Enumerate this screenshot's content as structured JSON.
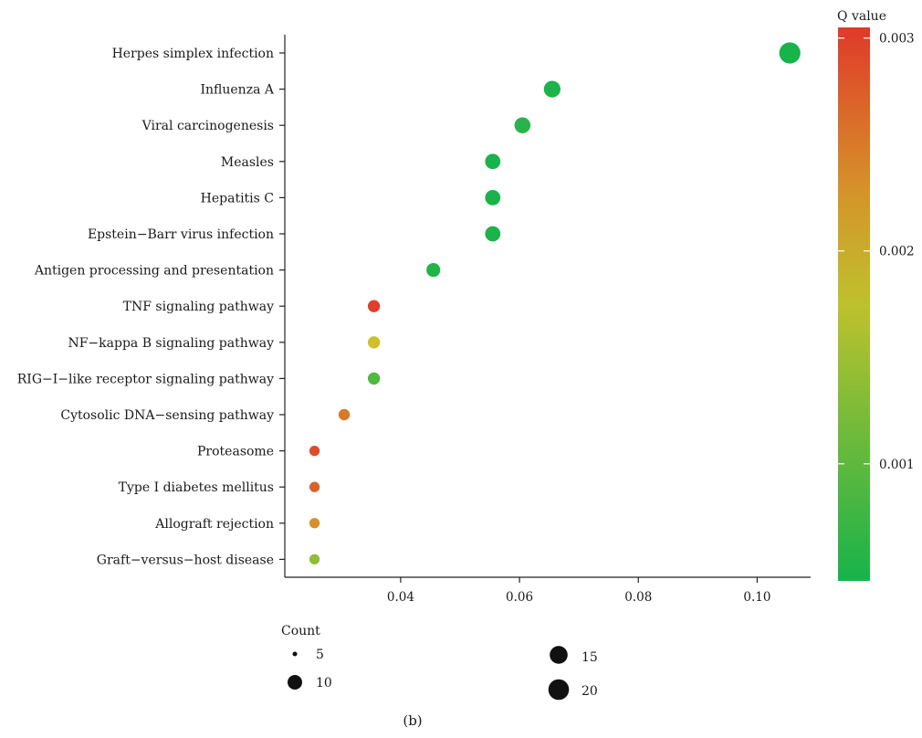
{
  "caption": "(b)",
  "chart_data": {
    "type": "scatter",
    "title": "",
    "xlabel": "",
    "ylabel": "",
    "xlim": [
      0.0205,
      0.109
    ],
    "x_ticks": [
      "0.04",
      "0.06",
      "0.08",
      "0.10"
    ],
    "x_tick_values": [
      0.04,
      0.06,
      0.08,
      0.1
    ],
    "grid": false,
    "categories": [
      "Herpes simplex infection",
      "Influenza A",
      "Viral carcinogenesis",
      "Measles",
      "Hepatitis C",
      "Epstein−Barr virus infection",
      "Antigen processing and presentation",
      "TNF signaling pathway",
      "NF−kappa B signaling pathway",
      "RIG−I−like receptor signaling pathway",
      "Cytosolic DNA−sensing pathway",
      "Proteasome",
      "Type I diabetes mellitus",
      "Allograft rejection",
      "Graft−versus−host disease"
    ],
    "points": [
      {
        "category": "Herpes simplex infection",
        "x": 0.1055,
        "count": 21,
        "q": 0.00045
      },
      {
        "category": "Influenza A",
        "x": 0.0655,
        "count": 13,
        "q": 0.00048
      },
      {
        "category": "Viral carcinogenesis",
        "x": 0.0605,
        "count": 12,
        "q": 0.00058
      },
      {
        "category": "Measles",
        "x": 0.0555,
        "count": 11,
        "q": 0.00047
      },
      {
        "category": "Hepatitis C",
        "x": 0.0555,
        "count": 11,
        "q": 0.00047
      },
      {
        "category": "Epstein−Barr virus infection",
        "x": 0.0555,
        "count": 11,
        "q": 0.00049
      },
      {
        "category": "Antigen processing and presentation",
        "x": 0.0455,
        "count": 9,
        "q": 0.00052
      },
      {
        "category": "TNF signaling pathway",
        "x": 0.0355,
        "count": 7,
        "q": 0.003
      },
      {
        "category": "NF−kappa B signaling pathway",
        "x": 0.0355,
        "count": 7,
        "q": 0.0019
      },
      {
        "category": "RIG−I−like receptor signaling pathway",
        "x": 0.0355,
        "count": 7,
        "q": 0.0009
      },
      {
        "category": "Cytosolic DNA−sensing pathway",
        "x": 0.0305,
        "count": 6,
        "q": 0.0025
      },
      {
        "category": "Proteasome",
        "x": 0.0255,
        "count": 5,
        "q": 0.0029
      },
      {
        "category": "Type I diabetes mellitus",
        "x": 0.0255,
        "count": 5,
        "q": 0.0027
      },
      {
        "category": "Allograft rejection",
        "x": 0.0255,
        "count": 5,
        "q": 0.0023
      },
      {
        "category": "Graft−versus−host disease",
        "x": 0.0255,
        "count": 5,
        "q": 0.0014
      }
    ],
    "color_legend": {
      "title": "Q value",
      "range": [
        0.00045,
        0.00305
      ],
      "ticks": [
        "0.001",
        "0.002",
        "0.003"
      ],
      "tick_values": [
        0.001,
        0.002,
        0.003
      ],
      "low_color": "#17b34b",
      "mid_color": "#cfc22a",
      "high_color": "#e0392a",
      "placement": "right"
    },
    "size_legend": {
      "title": "Count",
      "entries": [
        {
          "label": "5",
          "value": 5
        },
        {
          "label": "10",
          "value": 10
        },
        {
          "label": "15",
          "value": 15
        },
        {
          "label": "20",
          "value": 20
        }
      ],
      "placement": "bottom"
    }
  }
}
